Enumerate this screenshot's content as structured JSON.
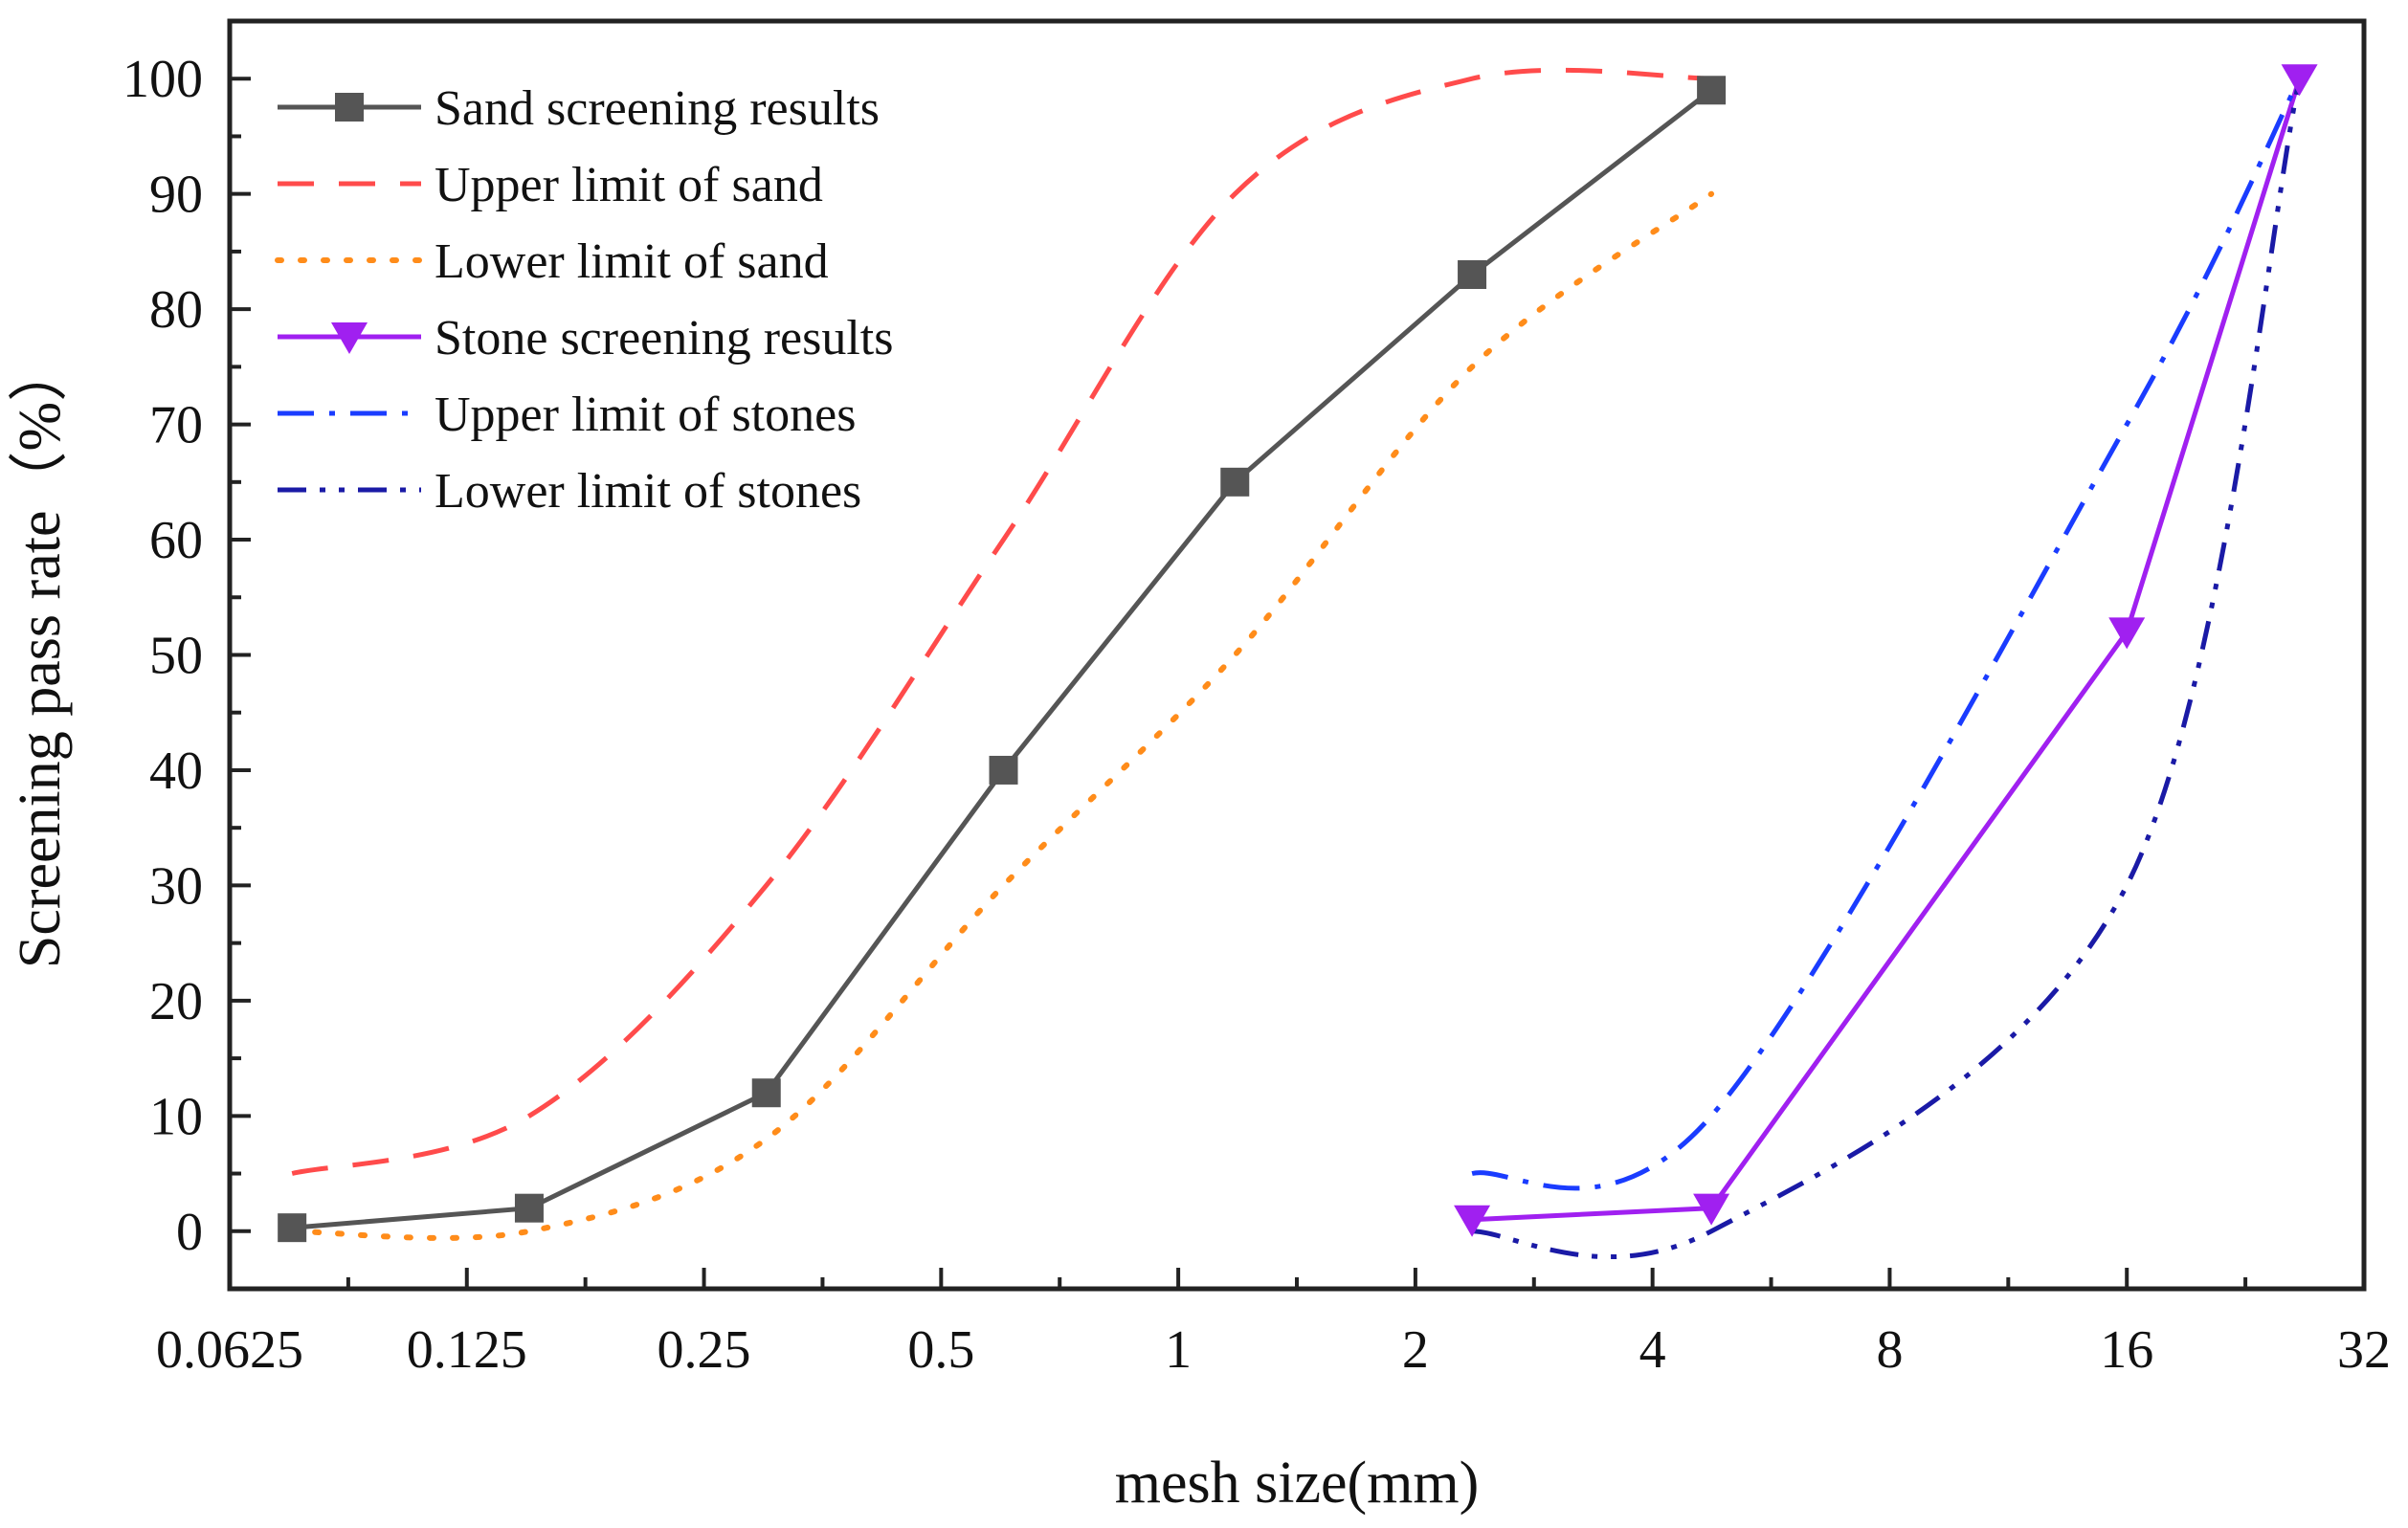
{
  "chart_data": {
    "type": "line",
    "xlabel": "mesh size(mm)",
    "ylabel": "Screening pass rate（%）",
    "x_scale": "log2",
    "xlim": [
      0.0625,
      32
    ],
    "ylim": [
      -5,
      105
    ],
    "x_ticks": [
      0.0625,
      0.125,
      0.25,
      0.5,
      1,
      2,
      4,
      8,
      16,
      32
    ],
    "x_tick_labels": [
      "0.0625",
      "0.125",
      "0.25",
      "0.5",
      "1",
      "2",
      "4",
      "8",
      "16",
      "32"
    ],
    "y_ticks": [
      0,
      10,
      20,
      30,
      40,
      50,
      60,
      70,
      80,
      90,
      100
    ],
    "y_tick_labels": [
      "0",
      "10",
      "20",
      "30",
      "40",
      "50",
      "60",
      "70",
      "80",
      "90",
      "100"
    ],
    "legend_position": "top-left",
    "series": [
      {
        "name": "Sand screening results",
        "color": "#555555",
        "style": "solid",
        "marker": "square",
        "x": [
          0.075,
          0.15,
          0.3,
          0.6,
          1.18,
          2.36,
          4.75
        ],
        "y": [
          0.3,
          2,
          12,
          40,
          65,
          83,
          99
        ]
      },
      {
        "name": "Upper limit of sand",
        "color": "#ff4b4b",
        "style": "dashed",
        "marker": "none",
        "smooth": true,
        "x": [
          0.075,
          0.15,
          0.3,
          0.6,
          1.18,
          2.36,
          4.75
        ],
        "y": [
          5,
          10,
          30,
          60,
          90,
          100,
          100
        ]
      },
      {
        "name": "Lower limit of sand",
        "color": "#ff8c1a",
        "style": "dotted",
        "marker": "none",
        "smooth": true,
        "x": [
          0.075,
          0.15,
          0.3,
          0.6,
          1.18,
          2.36,
          4.75
        ],
        "y": [
          0,
          0,
          8,
          30,
          50,
          75,
          90
        ]
      },
      {
        "name": "Stone screening results",
        "color": "#a020f0",
        "style": "solid",
        "marker": "triangle-down",
        "x": [
          2.36,
          4.75,
          16,
          26.5
        ],
        "y": [
          1,
          2,
          52,
          100
        ]
      },
      {
        "name": "Upper limit of stones",
        "color": "#1a3cff",
        "style": "dashdot",
        "marker": "none",
        "smooth": true,
        "x": [
          2.36,
          4.75,
          16,
          26.5
        ],
        "y": [
          5,
          10,
          70,
          100
        ]
      },
      {
        "name": "Lower limit of stones",
        "color": "#1a1aa6",
        "style": "dashdotdot",
        "marker": "none",
        "smooth": true,
        "x": [
          2.36,
          4.75,
          16,
          26.5
        ],
        "y": [
          0,
          0,
          30,
          100
        ]
      }
    ]
  }
}
